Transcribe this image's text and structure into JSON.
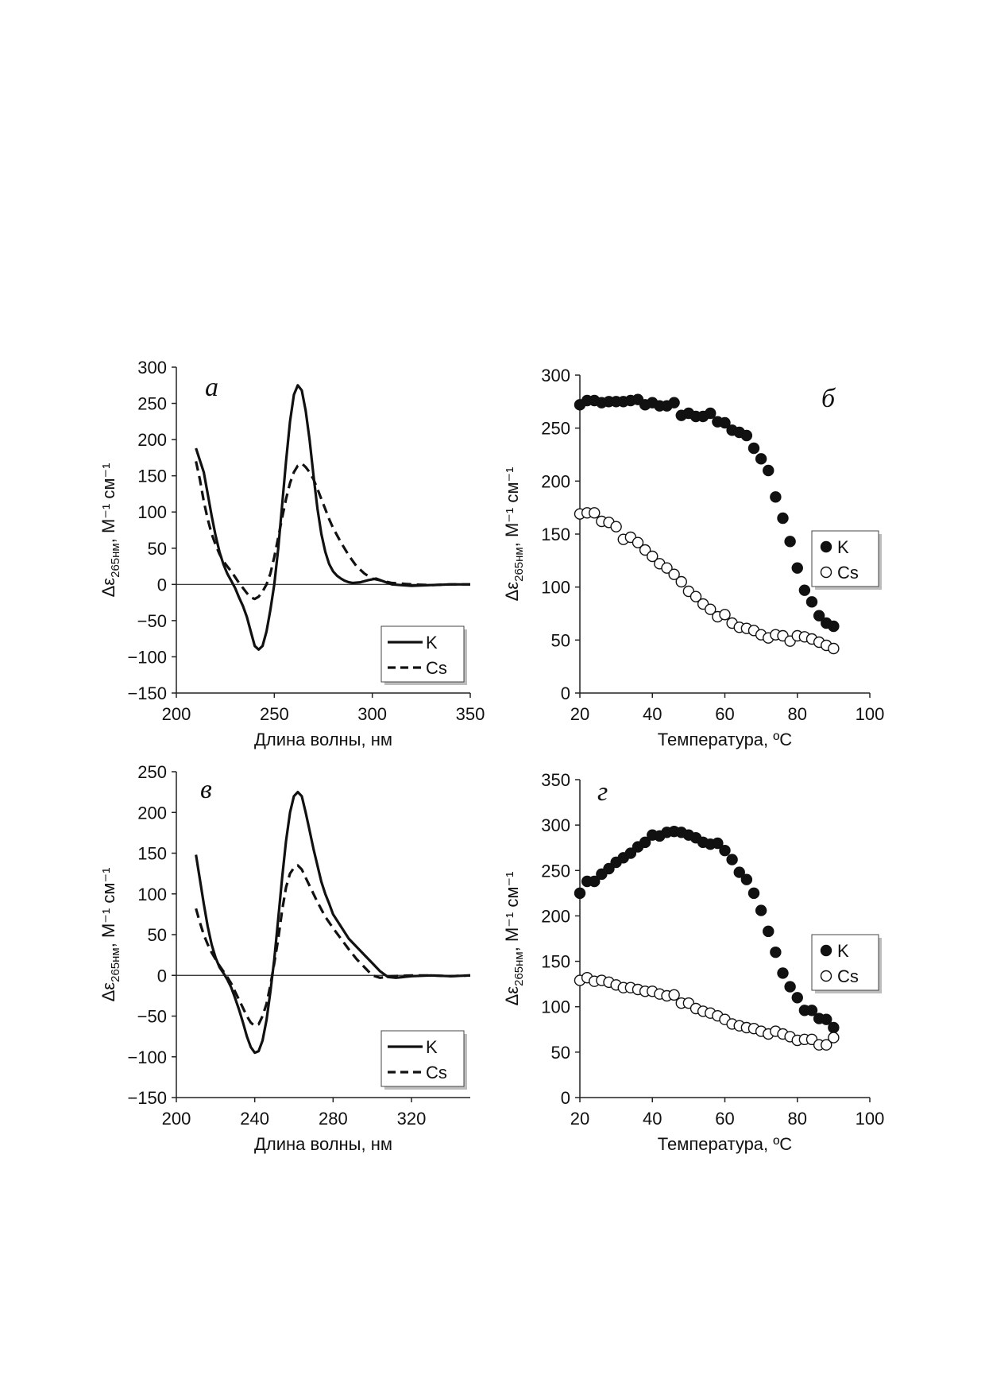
{
  "chart_data": [
    {
      "panel": "а",
      "type": "line",
      "xlabel": "Длина волны, нм",
      "ylabel_main": "Δε",
      "ylabel_sub": "265нм",
      "ylabel_rest": ", М⁻¹ см⁻¹",
      "xlim": [
        200,
        350
      ],
      "ylim": [
        -150,
        300
      ],
      "xticks": [
        200,
        250,
        300,
        350
      ],
      "yticks": [
        -150,
        -100,
        -50,
        0,
        50,
        100,
        150,
        200,
        250,
        300
      ],
      "zero_line": true,
      "legend_position": "bottom-right",
      "series": [
        {
          "name": "K",
          "style": "solid",
          "x": [
            210,
            214,
            216,
            218,
            220,
            222,
            224,
            226,
            228,
            230,
            232,
            234,
            236,
            238,
            240,
            242,
            244,
            246,
            248,
            250,
            252,
            254,
            256,
            258,
            260,
            262,
            264,
            266,
            268,
            270,
            272,
            274,
            276,
            278,
            280,
            282,
            284,
            286,
            288,
            290,
            294,
            298,
            302,
            306,
            310,
            320,
            330,
            340,
            350
          ],
          "y": [
            188,
            155,
            125,
            95,
            68,
            45,
            28,
            15,
            5,
            -5,
            -18,
            -30,
            -45,
            -65,
            -85,
            -90,
            -85,
            -65,
            -35,
            0,
            50,
            110,
            170,
            225,
            262,
            275,
            268,
            240,
            200,
            150,
            105,
            70,
            45,
            28,
            18,
            12,
            8,
            5,
            3,
            2,
            3,
            6,
            8,
            4,
            0,
            -2,
            -1,
            0,
            0
          ]
        },
        {
          "name": "Cs",
          "style": "dashed",
          "x": [
            210,
            212,
            214,
            216,
            218,
            220,
            222,
            224,
            226,
            228,
            230,
            232,
            234,
            236,
            238,
            240,
            242,
            244,
            246,
            248,
            250,
            252,
            254,
            256,
            258,
            260,
            262,
            264,
            266,
            268,
            270,
            272,
            274,
            276,
            278,
            280,
            284,
            288,
            292,
            296,
            300,
            310,
            320,
            330,
            340,
            350
          ],
          "y": [
            170,
            145,
            115,
            90,
            70,
            55,
            42,
            32,
            25,
            18,
            10,
            2,
            -5,
            -12,
            -18,
            -20,
            -17,
            -10,
            0,
            15,
            38,
            65,
            92,
            118,
            140,
            155,
            164,
            167,
            162,
            155,
            145,
            132,
            118,
            104,
            90,
            78,
            58,
            40,
            25,
            15,
            8,
            2,
            0,
            -1,
            0,
            0
          ]
        }
      ]
    },
    {
      "panel": "б",
      "type": "scatter",
      "xlabel": "Температура, ºС",
      "ylabel_main": "Δε",
      "ylabel_sub": "265нм",
      "ylabel_rest": ", М⁻¹ см⁻¹",
      "xlim": [
        20,
        100
      ],
      "ylim": [
        0,
        300
      ],
      "xticks": [
        20,
        40,
        60,
        80,
        100
      ],
      "yticks": [
        0,
        50,
        100,
        150,
        200,
        250,
        300
      ],
      "legend_position": "right",
      "series": [
        {
          "name": "K",
          "marker": "filled",
          "x": [
            20,
            22,
            24,
            26,
            28,
            30,
            32,
            34,
            36,
            38,
            40,
            42,
            44,
            46,
            48,
            50,
            52,
            54,
            56,
            58,
            60,
            62,
            64,
            66,
            68,
            70,
            72,
            74,
            76,
            78,
            80,
            82,
            84,
            86,
            88,
            90
          ],
          "y": [
            272,
            276,
            276,
            274,
            275,
            275,
            275,
            276,
            277,
            272,
            274,
            271,
            271,
            274,
            262,
            264,
            261,
            261,
            264,
            256,
            255,
            248,
            246,
            243,
            231,
            221,
            210,
            185,
            165,
            143,
            118,
            97,
            86,
            73,
            66,
            63
          ]
        },
        {
          "name": "Cs",
          "marker": "open",
          "x": [
            20,
            22,
            24,
            26,
            28,
            30,
            32,
            34,
            36,
            38,
            40,
            42,
            44,
            46,
            48,
            50,
            52,
            54,
            56,
            58,
            60,
            62,
            64,
            66,
            68,
            70,
            72,
            74,
            76,
            78,
            80,
            82,
            84,
            86,
            88,
            90
          ],
          "y": [
            169,
            170,
            170,
            162,
            161,
            157,
            145,
            147,
            142,
            135,
            129,
            122,
            118,
            112,
            105,
            96,
            91,
            84,
            79,
            72,
            74,
            66,
            62,
            61,
            59,
            55,
            52,
            55,
            54,
            49,
            54,
            53,
            51,
            48,
            45,
            42
          ]
        }
      ]
    },
    {
      "panel": "в",
      "type": "line",
      "xlabel": "Длина волны, нм",
      "ylabel_main": "Δε",
      "ylabel_sub": "265нм",
      "ylabel_rest": ", М⁻¹ см⁻¹",
      "xlim": [
        200,
        350
      ],
      "ylim": [
        -150,
        250
      ],
      "xticks": [
        200,
        240,
        280,
        320
      ],
      "yticks": [
        -150,
        -100,
        -50,
        0,
        50,
        100,
        150,
        200,
        250
      ],
      "zero_line": true,
      "legend_position": "bottom-right",
      "series": [
        {
          "name": "K",
          "style": "solid",
          "x": [
            210,
            212,
            214,
            216,
            218,
            220,
            222,
            224,
            226,
            228,
            230,
            232,
            234,
            236,
            238,
            240,
            242,
            244,
            246,
            248,
            250,
            252,
            254,
            256,
            258,
            260,
            262,
            264,
            266,
            268,
            270,
            272,
            274,
            276,
            278,
            280,
            284,
            288,
            292,
            296,
            300,
            304,
            308,
            312,
            320,
            330,
            340,
            350
          ],
          "y": [
            148,
            118,
            88,
            60,
            38,
            22,
            10,
            3,
            -5,
            -15,
            -28,
            -42,
            -58,
            -75,
            -88,
            -95,
            -93,
            -80,
            -55,
            -20,
            20,
            70,
            120,
            165,
            200,
            220,
            225,
            220,
            200,
            178,
            155,
            135,
            115,
            100,
            88,
            75,
            60,
            45,
            35,
            25,
            15,
            5,
            -2,
            -3,
            -1,
            0,
            -1,
            0
          ]
        },
        {
          "name": "Cs",
          "style": "dashed",
          "x": [
            210,
            212,
            214,
            216,
            218,
            220,
            222,
            224,
            226,
            228,
            230,
            232,
            234,
            236,
            238,
            240,
            242,
            244,
            246,
            248,
            250,
            252,
            254,
            256,
            258,
            260,
            262,
            264,
            266,
            268,
            270,
            272,
            276,
            280,
            284,
            288,
            292,
            296,
            300,
            304,
            310,
            320,
            330,
            340,
            350
          ],
          "y": [
            82,
            65,
            50,
            38,
            28,
            20,
            12,
            5,
            -2,
            -10,
            -20,
            -30,
            -40,
            -50,
            -58,
            -62,
            -60,
            -50,
            -35,
            -12,
            15,
            45,
            80,
            108,
            125,
            132,
            135,
            130,
            120,
            110,
            100,
            90,
            72,
            58,
            45,
            32,
            20,
            10,
            0,
            -3,
            -1,
            0,
            0,
            -1,
            0
          ]
        }
      ]
    },
    {
      "panel": "г",
      "type": "scatter",
      "xlabel": "Температура, ºС",
      "ylabel_main": "Δε",
      "ylabel_sub": "265нм",
      "ylabel_rest": ", М⁻¹ см⁻¹",
      "xlim": [
        20,
        100
      ],
      "ylim": [
        0,
        350
      ],
      "xticks": [
        20,
        40,
        60,
        80,
        100
      ],
      "yticks": [
        0,
        50,
        100,
        150,
        200,
        250,
        300,
        350
      ],
      "legend_position": "right",
      "series": [
        {
          "name": "K",
          "marker": "filled",
          "x": [
            20,
            22,
            24,
            26,
            28,
            30,
            32,
            34,
            36,
            38,
            40,
            42,
            44,
            46,
            48,
            50,
            52,
            54,
            56,
            58,
            60,
            62,
            64,
            66,
            68,
            70,
            72,
            74,
            76,
            78,
            80,
            82,
            84,
            86,
            88,
            90
          ],
          "y": [
            225,
            238,
            238,
            246,
            252,
            259,
            264,
            269,
            276,
            281,
            289,
            288,
            292,
            293,
            292,
            289,
            286,
            281,
            279,
            280,
            272,
            262,
            248,
            240,
            225,
            206,
            183,
            160,
            137,
            122,
            110,
            96,
            96,
            87,
            86,
            77
          ]
        },
        {
          "name": "Cs",
          "marker": "open",
          "x": [
            20,
            22,
            24,
            26,
            28,
            30,
            32,
            34,
            36,
            38,
            40,
            42,
            44,
            46,
            48,
            50,
            52,
            54,
            56,
            58,
            60,
            62,
            64,
            66,
            68,
            70,
            72,
            74,
            76,
            78,
            80,
            82,
            84,
            86,
            88,
            90
          ],
          "y": [
            129,
            132,
            128,
            129,
            127,
            124,
            121,
            121,
            119,
            117,
            117,
            114,
            112,
            113,
            104,
            104,
            98,
            95,
            93,
            90,
            86,
            81,
            79,
            77,
            76,
            73,
            70,
            73,
            70,
            67,
            63,
            64,
            64,
            58,
            58,
            66
          ]
        }
      ]
    }
  ]
}
